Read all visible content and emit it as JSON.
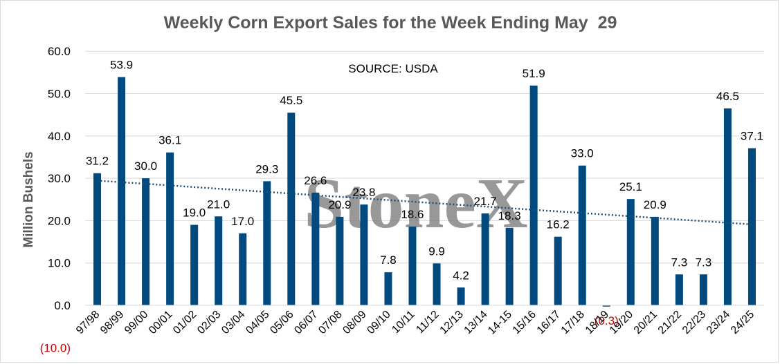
{
  "chart_data": {
    "type": "bar",
    "title": "Weekly Corn Export Sales for the Week Ending May  29",
    "source_note": "SOURCE: USDA",
    "watermark": "StoneX",
    "xlabel": "",
    "ylabel": "Million Bushels",
    "ylim": [
      -10,
      60
    ],
    "yticks": [
      -10,
      0,
      10,
      20,
      30,
      40,
      50,
      60
    ],
    "ytick_labels": [
      "(10.0)",
      "0.0",
      "10.0",
      "20.0",
      "30.0",
      "40.0",
      "50.0",
      "60.0"
    ],
    "grid": true,
    "bar_color": "#004a80",
    "trendline": {
      "style": "dotted",
      "kind": "linear",
      "color": "#1f4e79"
    },
    "negative_label_color": "#c00000",
    "categories": [
      "97/98",
      "98/99",
      "99/00",
      "00/01",
      "01/02",
      "02/03",
      "03/04",
      "04/05",
      "05/06",
      "06/07",
      "07/08",
      "08/09",
      "09/10",
      "10/11",
      "11/12",
      "12/13",
      "13/14",
      "14-15",
      "15/16",
      "16/17",
      "17/18",
      "18/19",
      "19/20",
      "20/21",
      "21/22",
      "22/23",
      "23/24",
      "24/25"
    ],
    "values": [
      31.2,
      53.9,
      30.0,
      36.1,
      19.0,
      21.0,
      17.0,
      29.3,
      45.5,
      26.6,
      20.9,
      23.8,
      7.8,
      18.6,
      9.9,
      4.2,
      21.7,
      18.3,
      51.9,
      16.2,
      33.0,
      -0.3,
      25.1,
      20.9,
      7.3,
      7.3,
      46.5,
      37.1
    ],
    "data_labels": [
      "31.2",
      "53.9",
      "30.0",
      "36.1",
      "19.0",
      "21.0",
      "17.0",
      "29.3",
      "45.5",
      "26.6",
      "20.9",
      "23.8",
      "7.8",
      "18.6",
      "9.9",
      "4.2",
      "21.7",
      "18.3",
      "51.9",
      "16.2",
      "33.0",
      "(0.3)",
      "25.1",
      "20.9",
      "7.3",
      "7.3",
      "46.5",
      "37.1"
    ]
  }
}
